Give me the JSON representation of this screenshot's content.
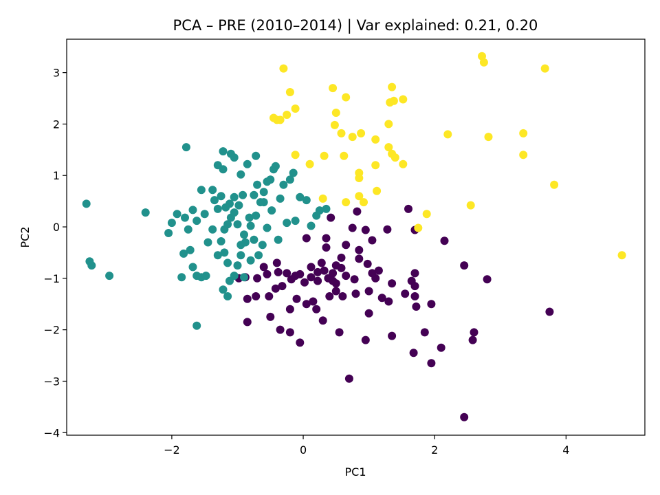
{
  "chart_data": {
    "type": "scatter",
    "title": "PCA – PRE (2010–2014) | Var explained: 0.21, 0.20",
    "xlabel": "PC1",
    "ylabel": "PC2",
    "xlim": [
      -3.6,
      5.2
    ],
    "ylim": [
      -4.05,
      3.65
    ],
    "xticks": [
      {
        "value": -2,
        "label": "−2"
      },
      {
        "value": 0,
        "label": "0"
      },
      {
        "value": 2,
        "label": "2"
      },
      {
        "value": 4,
        "label": "4"
      }
    ],
    "yticks": [
      {
        "value": -4,
        "label": "−4"
      },
      {
        "value": -3,
        "label": "−3"
      },
      {
        "value": -2,
        "label": "−2"
      },
      {
        "value": -1,
        "label": "−1"
      },
      {
        "value": 0,
        "label": "0"
      },
      {
        "value": 1,
        "label": "1"
      },
      {
        "value": 2,
        "label": "2"
      },
      {
        "value": 3,
        "label": "3"
      }
    ],
    "grid": false,
    "series": [
      {
        "color": "#440154",
        "points": [
          [
            0.42,
            0.18
          ],
          [
            0.82,
            0.3
          ],
          [
            1.28,
            -0.05
          ],
          [
            1.6,
            0.35
          ],
          [
            1.7,
            -0.06
          ],
          [
            2.15,
            -0.27
          ],
          [
            0.75,
            -0.02
          ],
          [
            0.95,
            -0.06
          ],
          [
            0.05,
            -0.22
          ],
          [
            0.35,
            -0.22
          ],
          [
            1.05,
            -0.26
          ],
          [
            0.65,
            -0.35
          ],
          [
            0.85,
            -0.45
          ],
          [
            1.65,
            -1.05
          ],
          [
            1.7,
            -1.15
          ],
          [
            1.7,
            -1.35
          ],
          [
            1.72,
            -1.55
          ],
          [
            1.7,
            -0.9
          ],
          [
            1.95,
            -1.5
          ],
          [
            1.85,
            -2.05
          ],
          [
            2.1,
            -2.35
          ],
          [
            1.95,
            -2.65
          ],
          [
            1.68,
            -2.45
          ],
          [
            2.45,
            -0.75
          ],
          [
            2.6,
            -2.05
          ],
          [
            2.58,
            -2.2
          ],
          [
            2.8,
            -1.02
          ],
          [
            3.75,
            -1.65
          ],
          [
            2.45,
            -3.7
          ],
          [
            0.7,
            -2.95
          ],
          [
            0.95,
            -2.2
          ],
          [
            1.35,
            -2.12
          ],
          [
            0.55,
            -2.05
          ],
          [
            1.0,
            -1.68
          ],
          [
            -0.05,
            -2.25
          ],
          [
            -0.2,
            -2.05
          ],
          [
            -0.35,
            -2.0
          ],
          [
            -0.85,
            -1.85
          ],
          [
            -0.5,
            -1.75
          ],
          [
            -0.2,
            -1.6
          ],
          [
            0.2,
            -1.6
          ],
          [
            0.3,
            -1.82
          ],
          [
            0.15,
            -1.45
          ],
          [
            0.4,
            -1.35
          ],
          [
            0.5,
            -1.25
          ],
          [
            0.6,
            -1.35
          ],
          [
            0.8,
            -1.3
          ],
          [
            1.2,
            -1.38
          ],
          [
            1.3,
            -1.45
          ],
          [
            1.0,
            -1.25
          ],
          [
            1.1,
            -1.0
          ],
          [
            1.15,
            -0.85
          ],
          [
            0.98,
            -0.72
          ],
          [
            0.78,
            -1.02
          ],
          [
            0.65,
            -0.95
          ],
          [
            0.5,
            -0.75
          ],
          [
            0.58,
            -0.6
          ],
          [
            0.45,
            -0.9
          ],
          [
            0.38,
            -1.0
          ],
          [
            0.28,
            -0.7
          ],
          [
            0.22,
            -0.88
          ],
          [
            0.32,
            -0.85
          ],
          [
            0.12,
            -0.98
          ],
          [
            0.02,
            -1.08
          ],
          [
            -0.05,
            -0.92
          ],
          [
            -0.12,
            -0.95
          ],
          [
            -0.18,
            -1.02
          ],
          [
            -0.25,
            -0.9
          ],
          [
            -0.32,
            -1.15
          ],
          [
            -0.38,
            -0.88
          ],
          [
            -0.42,
            -1.2
          ],
          [
            -0.52,
            -1.35
          ],
          [
            -0.55,
            -0.92
          ],
          [
            -0.7,
            -1.0
          ],
          [
            -0.72,
            -1.35
          ],
          [
            -0.85,
            -1.4
          ],
          [
            -0.98,
            -1.0
          ],
          [
            -0.88,
            -0.98
          ],
          [
            -0.6,
            -0.78
          ],
          [
            -0.4,
            -0.7
          ],
          [
            -0.1,
            -1.4
          ],
          [
            0.05,
            -1.5
          ],
          [
            0.22,
            -1.05
          ],
          [
            0.5,
            -1.1
          ],
          [
            0.35,
            -0.4
          ],
          [
            0.58,
            -0.8
          ],
          [
            0.85,
            -0.62
          ],
          [
            1.05,
            -0.9
          ],
          [
            0.45,
            -1.05
          ],
          [
            1.55,
            -1.3
          ],
          [
            1.35,
            -1.1
          ],
          [
            0.12,
            -0.78
          ]
        ]
      },
      {
        "color": "#21918c",
        "points": [
          [
            -3.3,
            0.45
          ],
          [
            -3.25,
            -0.67
          ],
          [
            -3.22,
            -0.75
          ],
          [
            -2.95,
            -0.95
          ],
          [
            -2.4,
            0.28
          ],
          [
            -1.78,
            1.55
          ],
          [
            -2.0,
            0.08
          ],
          [
            -2.05,
            -0.12
          ],
          [
            -1.92,
            0.25
          ],
          [
            -1.8,
            0.18
          ],
          [
            -1.75,
            -0.05
          ],
          [
            -1.82,
            -0.52
          ],
          [
            -1.72,
            -0.45
          ],
          [
            -1.68,
            -0.78
          ],
          [
            -1.85,
            -0.98
          ],
          [
            -1.62,
            -0.95
          ],
          [
            -1.55,
            -0.98
          ],
          [
            -1.48,
            -0.95
          ],
          [
            -1.62,
            -1.92
          ],
          [
            -1.68,
            0.33
          ],
          [
            -1.62,
            0.12
          ],
          [
            -1.55,
            0.72
          ],
          [
            -1.5,
            0.25
          ],
          [
            -1.38,
            0.72
          ],
          [
            -1.35,
            0.52
          ],
          [
            -1.3,
            1.2
          ],
          [
            -1.22,
            1.12
          ],
          [
            -1.22,
            1.47
          ],
          [
            -1.1,
            1.42
          ],
          [
            -1.05,
            1.35
          ],
          [
            -0.95,
            1.02
          ],
          [
            -0.85,
            1.22
          ],
          [
            -0.72,
            1.38
          ],
          [
            -1.45,
            -0.3
          ],
          [
            -1.2,
            -0.5
          ],
          [
            -1.15,
            -0.7
          ],
          [
            -1.12,
            -1.05
          ],
          [
            -1.05,
            -0.95
          ],
          [
            -1.0,
            -0.75
          ],
          [
            -0.95,
            -0.55
          ],
          [
            -1.15,
            -1.35
          ],
          [
            -1.22,
            -1.22
          ],
          [
            -1.3,
            -0.55
          ],
          [
            -1.25,
            -0.28
          ],
          [
            -1.2,
            -0.05
          ],
          [
            -1.15,
            0.05
          ],
          [
            -1.1,
            0.18
          ],
          [
            -1.05,
            0.28
          ],
          [
            -1.0,
            0.05
          ],
          [
            -0.98,
            0.42
          ],
          [
            -0.92,
            0.62
          ],
          [
            -0.9,
            -0.15
          ],
          [
            -0.88,
            -0.3
          ],
          [
            -0.82,
            0.18
          ],
          [
            -0.8,
            0.02
          ],
          [
            -0.72,
            0.22
          ],
          [
            -0.65,
            0.48
          ],
          [
            -0.6,
            0.68
          ],
          [
            -0.55,
            0.88
          ],
          [
            -0.5,
            0.92
          ],
          [
            -0.45,
            1.12
          ],
          [
            -0.42,
            1.18
          ],
          [
            -0.35,
            0.55
          ],
          [
            -0.3,
            0.82
          ],
          [
            -0.2,
            0.92
          ],
          [
            -0.15,
            1.05
          ],
          [
            -0.12,
            0.12
          ],
          [
            -0.05,
            0.58
          ],
          [
            0.05,
            0.52
          ],
          [
            0.12,
            0.02
          ],
          [
            0.2,
            0.22
          ],
          [
            0.25,
            0.32
          ],
          [
            0.35,
            0.35
          ],
          [
            -0.25,
            0.08
          ],
          [
            -0.38,
            -0.25
          ],
          [
            -0.48,
            0.32
          ],
          [
            -0.55,
            -0.02
          ],
          [
            -0.62,
            -0.35
          ],
          [
            -0.68,
            -0.55
          ],
          [
            -0.75,
            -0.25
          ],
          [
            -0.8,
            -0.65
          ],
          [
            -0.9,
            -0.98
          ],
          [
            -0.95,
            -0.35
          ],
          [
            -1.05,
            0.58
          ],
          [
            -1.12,
            0.45
          ],
          [
            -1.18,
            0.38
          ],
          [
            -1.25,
            0.6
          ],
          [
            -1.3,
            0.35
          ],
          [
            -0.7,
            0.82
          ],
          [
            -0.75,
            0.62
          ],
          [
            -0.6,
            0.48
          ],
          [
            -1.38,
            -0.05
          ]
        ]
      },
      {
        "color": "#fde725",
        "points": [
          [
            -0.3,
            3.08
          ],
          [
            -0.2,
            2.62
          ],
          [
            -0.12,
            2.3
          ],
          [
            -0.25,
            2.18
          ],
          [
            -0.45,
            2.12
          ],
          [
            -0.4,
            2.08
          ],
          [
            -0.35,
            2.08
          ],
          [
            -0.12,
            1.4
          ],
          [
            0.1,
            1.22
          ],
          [
            0.45,
            2.7
          ],
          [
            0.65,
            2.52
          ],
          [
            0.5,
            2.22
          ],
          [
            0.48,
            1.98
          ],
          [
            0.58,
            1.82
          ],
          [
            0.75,
            1.75
          ],
          [
            0.88,
            1.82
          ],
          [
            0.32,
            1.38
          ],
          [
            0.62,
            1.38
          ],
          [
            0.85,
            1.05
          ],
          [
            0.85,
            0.95
          ],
          [
            1.1,
            1.2
          ],
          [
            1.1,
            1.7
          ],
          [
            1.35,
            2.72
          ],
          [
            1.32,
            2.42
          ],
          [
            1.38,
            2.45
          ],
          [
            1.52,
            2.48
          ],
          [
            1.3,
            2.0
          ],
          [
            1.3,
            1.55
          ],
          [
            1.35,
            1.42
          ],
          [
            1.4,
            1.35
          ],
          [
            1.52,
            1.22
          ],
          [
            1.12,
            0.7
          ],
          [
            0.85,
            0.6
          ],
          [
            0.92,
            0.48
          ],
          [
            0.65,
            0.48
          ],
          [
            0.3,
            0.55
          ],
          [
            1.88,
            0.25
          ],
          [
            1.75,
            -0.02
          ],
          [
            2.2,
            1.8
          ],
          [
            2.55,
            0.42
          ],
          [
            2.72,
            3.32
          ],
          [
            2.75,
            3.2
          ],
          [
            2.82,
            1.75
          ],
          [
            3.35,
            1.82
          ],
          [
            3.35,
            1.4
          ],
          [
            3.68,
            3.08
          ],
          [
            3.82,
            0.82
          ],
          [
            4.85,
            -0.55
          ]
        ]
      }
    ]
  }
}
